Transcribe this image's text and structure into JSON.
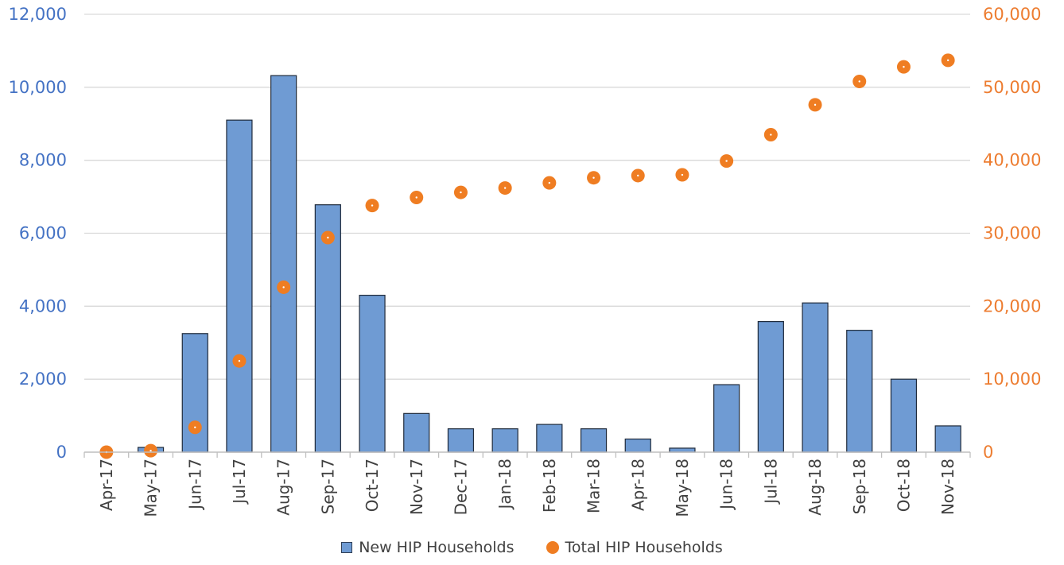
{
  "chart_data": {
    "type": "bar",
    "categories": [
      "Apr-17",
      "May-17",
      "Jun-17",
      "Jul-17",
      "Aug-17",
      "Sep-17",
      "Oct-17",
      "Nov-17",
      "Dec-17",
      "Jan-18",
      "Feb-18",
      "Mar-18",
      "Apr-18",
      "May-18",
      "Jun-18",
      "Jul-18",
      "Aug-18",
      "Sep-18",
      "Oct-18",
      "Nov-18"
    ],
    "series": [
      {
        "name": "New HIP Households",
        "type": "bar",
        "axis": "left",
        "color": "#6f9bd3",
        "values": [
          0,
          130,
          3250,
          9100,
          10320,
          6780,
          4300,
          1060,
          640,
          640,
          760,
          640,
          360,
          110,
          1850,
          3580,
          4090,
          3340,
          2000,
          720
        ]
      },
      {
        "name": "Total HIP Households",
        "type": "scatter",
        "axis": "right",
        "color": "#ef7d22",
        "values": [
          0,
          200,
          3400,
          12500,
          22600,
          29400,
          33800,
          34900,
          35600,
          36200,
          36900,
          37600,
          37900,
          38000,
          39900,
          43500,
          47600,
          50800,
          52800,
          53700
        ]
      }
    ],
    "y_left": {
      "min": 0,
      "max": 12000,
      "ticks": [
        "0",
        "2,000",
        "4,000",
        "6,000",
        "8,000",
        "10,000",
        "12,000"
      ],
      "color": "#4472c4"
    },
    "y_right": {
      "min": 0,
      "max": 60000,
      "ticks": [
        "0",
        "10,000",
        "20,000",
        "30,000",
        "40,000",
        "50,000",
        "60,000"
      ],
      "color": "#ed7d31"
    },
    "grid": true,
    "legend_position": "bottom",
    "title": "",
    "xlabel": "",
    "ylabel": ""
  },
  "legend": {
    "bar_label": "New HIP Households",
    "dot_label": "Total HIP Households"
  }
}
